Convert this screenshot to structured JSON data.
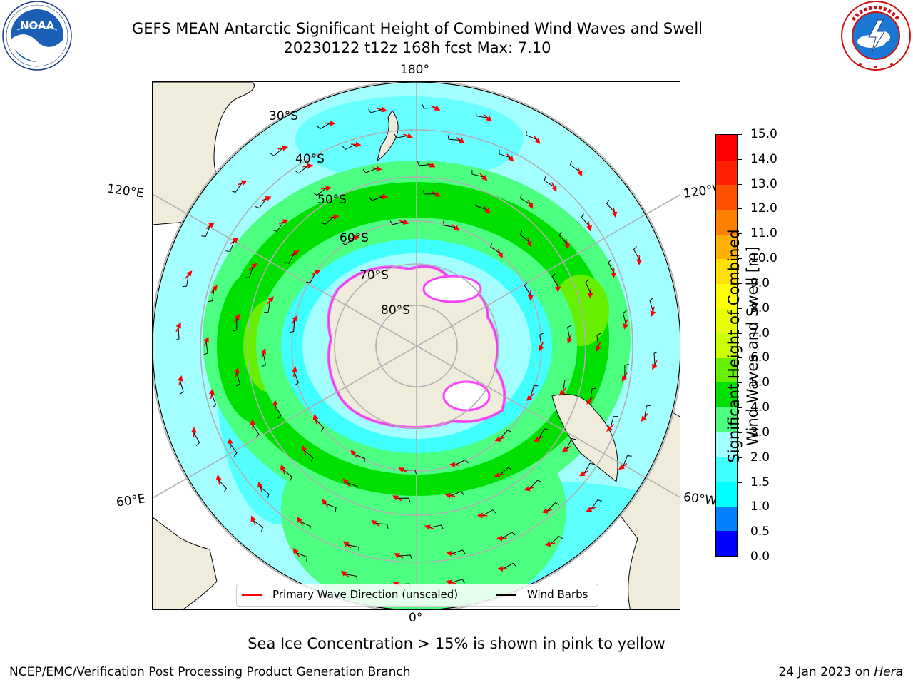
{
  "title": {
    "line1": "GEFS MEAN Antarctic Significant Height of Combined Wind Waves and Swell",
    "line2": "20230122 t12z 168h fcst   Max: 7.10"
  },
  "logos": {
    "left": {
      "name": "noaa-logo",
      "text": "NOAA",
      "ring_text": "NATIONAL OCEANIC AND ATMOSPHERIC ADMINISTRATION · U.S. DEPARTMENT OF COMMERCE"
    },
    "right": {
      "name": "nws-logo",
      "ring_text": "NATIONAL WEATHER SERVICE"
    }
  },
  "map": {
    "projection": "south-polar-stereographic",
    "longitude_labels": {
      "top": "180°",
      "bottom": "0°",
      "upper_left": "120°E",
      "upper_right": "120°W",
      "lower_left": "60°E",
      "lower_right": "60°W"
    },
    "latitude_labels": [
      "30°S",
      "40°S",
      "50°S",
      "60°S",
      "70°S",
      "80°S"
    ],
    "colors": {
      "land": "#efecdc",
      "ocean_low": "#a3ffff",
      "grid": "#b0b0b0",
      "wave_arrow": "#ff0000",
      "wind_barb": "#000000"
    }
  },
  "colorbar": {
    "label_line1": "Significant Height of Combined",
    "label_line2": "Wind Waves and Swell [m]",
    "ticks": [
      "0.0",
      "0.5",
      "1.0",
      "1.5",
      "2.0",
      "3.0",
      "4.0",
      "5.0",
      "6.0",
      "7.0",
      "8.0",
      "9.0",
      "10.0",
      "11.0",
      "12.0",
      "13.0",
      "14.0",
      "15.0"
    ],
    "colors": [
      "#0000ff",
      "#0080ff",
      "#00ffff",
      "#40ffff",
      "#a3ffff",
      "#4dff80",
      "#00e000",
      "#66f000",
      "#ccff00",
      "#e8ff00",
      "#ffff00",
      "#ffe000",
      "#ffb000",
      "#ff8000",
      "#ff5000",
      "#ff2000",
      "#ff0000"
    ]
  },
  "legend": {
    "wave_label": "Primary Wave Direction (unscaled)",
    "wind_label": "Wind Barbs"
  },
  "note": "Sea Ice Concentration > 15% is shown in pink to yellow",
  "footer": {
    "left": "NCEP/EMC/Verification Post Processing Product Generation Branch",
    "right_date": "24 Jan 2023 on ",
    "right_host": "Hera"
  }
}
